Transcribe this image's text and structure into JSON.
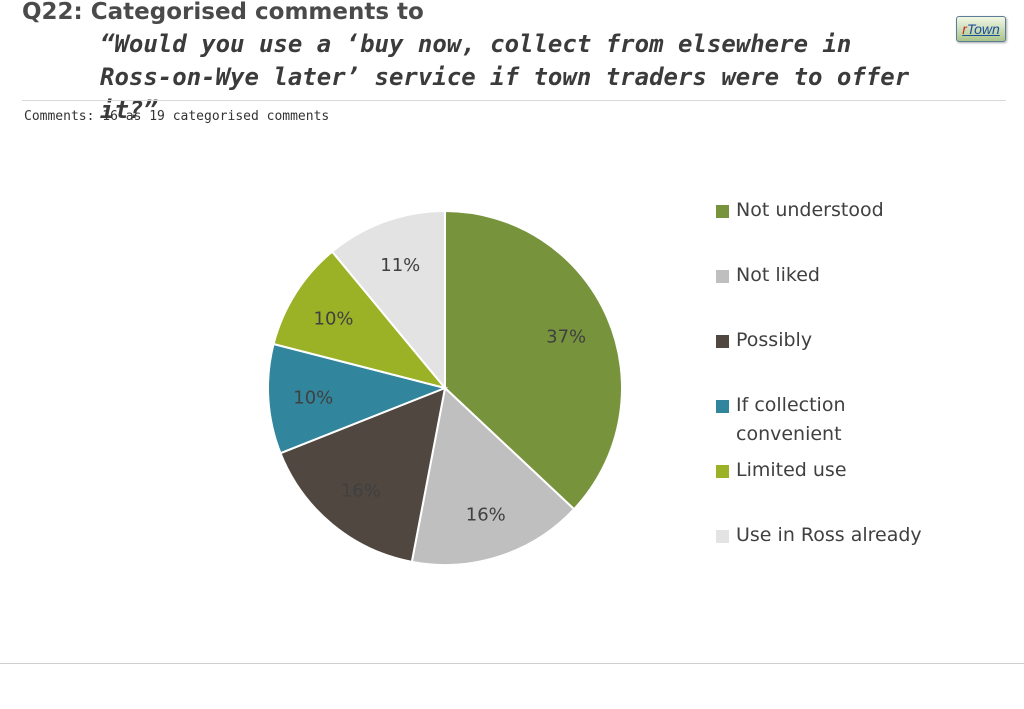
{
  "header": {
    "question_label": "Q22: Categorised comments to",
    "question_text": "“Would you use a ‘buy now, collect from elsewhere in Ross-on-Wye later’ service if town traders were to offer it?”",
    "logo_prefix": "r",
    "logo_text": "Town"
  },
  "subnote": "Comments: 16 as 19 categorised comments",
  "chart_data": {
    "type": "pie",
    "title": "",
    "categories": [
      "Not understood",
      "Not liked",
      "Possibly",
      "If collection convenient",
      "Limited use",
      "Use in Ross already"
    ],
    "values": [
      37,
      16,
      16,
      10,
      10,
      11
    ],
    "labels": [
      "37%",
      "16%",
      "16%",
      "10%",
      "10%",
      "11%"
    ],
    "colors": [
      "#77933c",
      "#bfbfbf",
      "#4f4740",
      "#31859c",
      "#9bb227",
      "#e3e3e3"
    ],
    "legend_position": "right",
    "start_angle": "12 o'clock, clockwise"
  }
}
